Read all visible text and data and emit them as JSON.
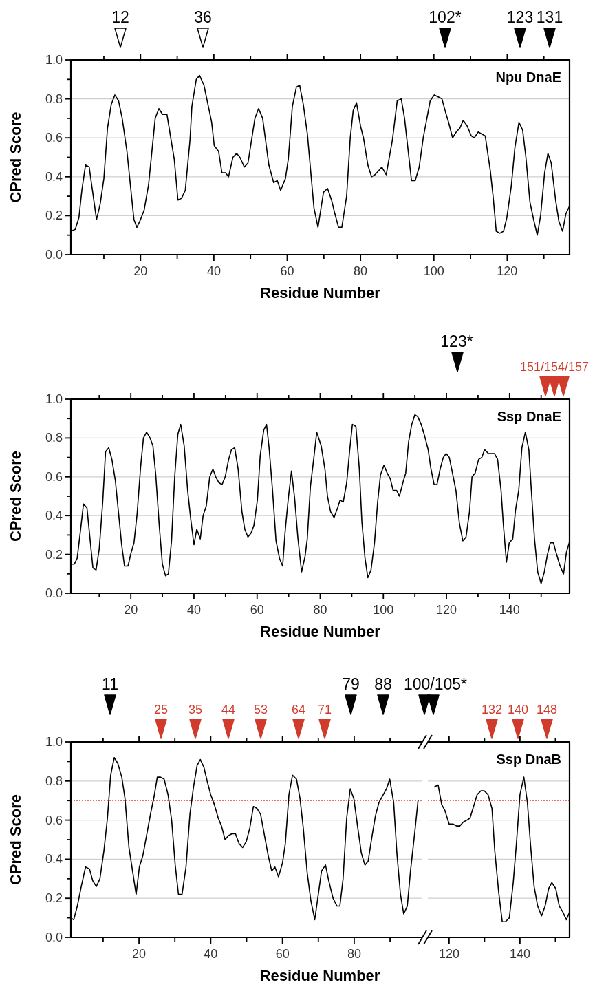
{
  "chart_data": [
    {
      "type": "line",
      "title": "Npu DnaE",
      "xlabel": "Residue Number",
      "ylabel": "CPred Score",
      "color": "#000000",
      "grid": "y",
      "xlim": [
        1,
        137
      ],
      "ylim": [
        0,
        1
      ],
      "xticks": [
        {
          "value": 10,
          "label": null
        },
        20,
        {
          "value": 30,
          "label": null
        },
        40,
        {
          "value": 50,
          "label": null
        },
        60,
        {
          "value": 70,
          "label": null
        },
        80,
        {
          "value": 90,
          "label": null
        },
        100,
        {
          "value": 110,
          "label": null
        },
        120,
        {
          "value": 130,
          "label": null
        }
      ],
      "yticks": [
        {
          "value": 0,
          "label": "0.0"
        },
        {
          "value": 0.1,
          "label": null
        },
        {
          "value": 0.2,
          "label": "0.2"
        },
        {
          "value": 0.3,
          "label": null
        },
        {
          "value": 0.4,
          "label": "0.4"
        },
        {
          "value": 0.5,
          "label": null
        },
        {
          "value": 0.6,
          "label": "0.6"
        },
        {
          "value": 0.7,
          "label": null
        },
        {
          "value": 0.8,
          "label": "0.8"
        },
        {
          "value": 0.9,
          "label": null
        },
        {
          "value": 1,
          "label": "1.0"
        }
      ],
      "x": [
        1,
        2.2,
        3.2,
        4,
        5,
        6,
        8,
        9,
        10,
        11,
        12,
        13,
        14,
        15,
        16.3,
        18.2,
        19,
        20,
        21,
        22.2,
        24,
        25,
        26,
        27.2,
        29.2,
        30.2,
        31.2,
        32.2,
        33.5,
        34,
        35.2,
        36.1,
        37.3,
        39.4,
        40.1,
        41.3,
        42.2,
        43.2,
        44,
        45.2,
        46.2,
        47.1,
        48.3,
        49.3,
        51.2,
        52.2,
        53.3,
        55,
        56.3,
        57.3,
        58.2,
        59.5,
        60.3,
        61.4,
        62.5,
        63.4,
        64.4,
        65.5,
        67.3,
        68.4,
        69.9,
        71,
        72.1,
        73,
        74,
        74.9,
        76.2,
        77.2,
        78,
        78.9,
        80,
        80.8,
        82,
        83,
        83.9,
        84.9,
        85.8,
        87,
        88.7,
        90,
        91.1,
        92,
        93.9,
        94.9,
        96,
        97.1,
        99,
        100.1,
        101.2,
        102.2,
        103.2,
        104,
        105.1,
        106.1,
        107.1,
        108,
        109.1,
        110.2,
        111,
        112.1,
        113,
        114,
        115.4,
        116.2,
        117,
        118,
        119,
        119.9,
        121.1,
        122.1,
        123.2,
        124.2,
        125.1,
        126.2,
        127.2,
        128.2,
        129.1,
        130.2,
        131.1,
        132,
        133.2,
        134.1,
        135.1,
        136,
        137
      ],
      "values": [
        0.12,
        0.13,
        0.19,
        0.33,
        0.46,
        0.45,
        0.18,
        0.26,
        0.39,
        0.65,
        0.77,
        0.82,
        0.79,
        0.7,
        0.53,
        0.18,
        0.14,
        0.18,
        0.23,
        0.36,
        0.7,
        0.75,
        0.72,
        0.72,
        0.49,
        0.28,
        0.29,
        0.33,
        0.59,
        0.76,
        0.9,
        0.92,
        0.87,
        0.68,
        0.56,
        0.53,
        0.42,
        0.42,
        0.4,
        0.5,
        0.52,
        0.5,
        0.45,
        0.47,
        0.7,
        0.75,
        0.7,
        0.46,
        0.37,
        0.38,
        0.33,
        0.39,
        0.49,
        0.76,
        0.86,
        0.87,
        0.77,
        0.62,
        0.24,
        0.14,
        0.32,
        0.34,
        0.28,
        0.21,
        0.14,
        0.14,
        0.3,
        0.6,
        0.74,
        0.78,
        0.66,
        0.6,
        0.46,
        0.4,
        0.41,
        0.43,
        0.45,
        0.41,
        0.59,
        0.79,
        0.8,
        0.7,
        0.38,
        0.38,
        0.45,
        0.6,
        0.79,
        0.82,
        0.81,
        0.8,
        0.73,
        0.68,
        0.6,
        0.63,
        0.65,
        0.69,
        0.66,
        0.61,
        0.6,
        0.63,
        0.62,
        0.61,
        0.43,
        0.29,
        0.12,
        0.11,
        0.12,
        0.19,
        0.35,
        0.55,
        0.68,
        0.64,
        0.5,
        0.27,
        0.18,
        0.1,
        0.2,
        0.42,
        0.52,
        0.47,
        0.28,
        0.17,
        0.12,
        0.21,
        0.25
      ],
      "annotations": [
        "12",
        "36",
        "102*",
        "123",
        "131"
      ]
    },
    {
      "type": "line",
      "title": "Ssp DnaE",
      "xlabel": "Residue Number",
      "ylabel": "CPred Score",
      "color": "#000000",
      "grid": "y",
      "xlim": [
        1,
        159
      ],
      "ylim": [
        0,
        1
      ],
      "xticks": [
        {
          "value": 10,
          "label": null
        },
        20,
        {
          "value": 30,
          "label": null
        },
        40,
        {
          "value": 50,
          "label": null
        },
        60,
        {
          "value": 70,
          "label": null
        },
        80,
        {
          "value": 90,
          "label": null
        },
        100,
        {
          "value": 110,
          "label": null
        },
        120,
        {
          "value": 130,
          "label": null
        },
        140,
        {
          "value": 150,
          "label": null
        }
      ],
      "yticks": [
        {
          "value": 0,
          "label": "0.0"
        },
        {
          "value": 0.1,
          "label": null
        },
        {
          "value": 0.2,
          "label": "0.2"
        },
        {
          "value": 0.3,
          "label": null
        },
        {
          "value": 0.4,
          "label": "0.4"
        },
        {
          "value": 0.5,
          "label": null
        },
        {
          "value": 0.6,
          "label": "0.6"
        },
        {
          "value": 0.7,
          "label": null
        },
        {
          "value": 0.8,
          "label": "0.8"
        },
        {
          "value": 0.9,
          "label": null
        },
        {
          "value": 1,
          "label": "1.0"
        }
      ],
      "x": [
        1,
        2.1,
        3,
        4.1,
        5,
        6.1,
        8,
        9,
        10,
        11.1,
        12,
        13,
        14,
        15.1,
        17.1,
        18,
        19.1,
        20.1,
        21,
        22,
        23.1,
        24,
        25,
        26.1,
        27,
        27.9,
        29,
        30,
        31,
        31.9,
        32.9,
        33.9,
        34.9,
        35.8,
        36.9,
        38,
        39,
        40,
        40.9,
        42,
        42.9,
        43.9,
        45,
        46,
        46.9,
        47.9,
        48.9,
        49.9,
        51,
        51.9,
        52.9,
        54,
        55.2,
        56.1,
        57.1,
        58.1,
        59,
        60.1,
        61,
        62.1,
        63,
        63.8,
        64.9,
        66,
        67.1,
        68.1,
        68.9,
        69.9,
        70.9,
        71.9,
        72.9,
        74.1,
        75.2,
        75.9,
        76.9,
        78,
        78.9,
        80.3,
        81.5,
        82.3,
        83.3,
        84.4,
        85.5,
        86.3,
        87.3,
        88.4,
        89.3,
        90.2,
        91.3,
        92.4,
        93.2,
        94.2,
        95.1,
        96.1,
        97.2,
        98.2,
        99.1,
        100.2,
        101.2,
        102.2,
        103.1,
        104.2,
        105.1,
        106.2,
        107.1,
        108,
        109,
        110,
        110.9,
        112,
        113.1,
        114.2,
        115.1,
        116.1,
        117,
        118,
        119,
        119.9,
        120.9,
        121.9,
        123,
        124.1,
        125.2,
        126.2,
        127.3,
        128.1,
        129.1,
        130.2,
        131.2,
        132.1,
        133.3,
        134.2,
        135.2,
        136.2,
        137.3,
        138,
        139,
        139.9,
        141,
        141.9,
        142.9,
        143.9,
        145,
        146.1,
        146.9,
        147.9,
        148.9,
        150,
        151,
        152,
        152.9,
        153.9,
        154.9,
        156,
        157.1,
        158,
        158.9
      ],
      "values": [
        0.15,
        0.15,
        0.18,
        0.33,
        0.46,
        0.44,
        0.13,
        0.12,
        0.23,
        0.47,
        0.73,
        0.75,
        0.69,
        0.58,
        0.25,
        0.14,
        0.14,
        0.21,
        0.26,
        0.41,
        0.65,
        0.8,
        0.83,
        0.8,
        0.76,
        0.61,
        0.35,
        0.15,
        0.09,
        0.1,
        0.27,
        0.6,
        0.82,
        0.87,
        0.76,
        0.53,
        0.38,
        0.25,
        0.33,
        0.28,
        0.4,
        0.45,
        0.6,
        0.64,
        0.6,
        0.57,
        0.56,
        0.6,
        0.69,
        0.74,
        0.75,
        0.64,
        0.42,
        0.33,
        0.29,
        0.31,
        0.35,
        0.48,
        0.71,
        0.84,
        0.87,
        0.75,
        0.53,
        0.27,
        0.18,
        0.14,
        0.32,
        0.49,
        0.63,
        0.49,
        0.29,
        0.11,
        0.19,
        0.28,
        0.55,
        0.7,
        0.83,
        0.76,
        0.64,
        0.5,
        0.42,
        0.39,
        0.44,
        0.48,
        0.47,
        0.57,
        0.73,
        0.87,
        0.86,
        0.64,
        0.37,
        0.18,
        0.08,
        0.12,
        0.26,
        0.47,
        0.61,
        0.66,
        0.62,
        0.59,
        0.53,
        0.53,
        0.5,
        0.57,
        0.62,
        0.78,
        0.87,
        0.92,
        0.91,
        0.87,
        0.81,
        0.74,
        0.64,
        0.56,
        0.56,
        0.64,
        0.7,
        0.72,
        0.7,
        0.62,
        0.53,
        0.36,
        0.27,
        0.29,
        0.42,
        0.6,
        0.62,
        0.69,
        0.7,
        0.74,
        0.72,
        0.72,
        0.72,
        0.69,
        0.53,
        0.36,
        0.16,
        0.26,
        0.28,
        0.43,
        0.53,
        0.75,
        0.83,
        0.74,
        0.53,
        0.28,
        0.11,
        0.05,
        0.11,
        0.2,
        0.26,
        0.26,
        0.2,
        0.14,
        0.1,
        0.21,
        0.26
      ],
      "annotations": [
        "123*",
        "151/154/157"
      ]
    },
    {
      "type": "line",
      "xlabel": "Residue Number",
      "ylabel": "CPred Score",
      "color": "#000000",
      "grid": "y",
      "xlim": [
        1,
        99
      ],
      "ylim": [
        0,
        1
      ],
      "xticks": [
        {
          "value": 10,
          "label": null
        },
        20,
        {
          "value": 30,
          "label": null
        },
        40,
        {
          "value": 50,
          "label": null
        },
        60,
        {
          "value": 70,
          "label": null
        },
        80,
        {
          "value": 90,
          "label": null
        }
      ],
      "yticks": [
        {
          "value": 0,
          "label": "0.0"
        },
        {
          "value": 0.1,
          "label": null
        },
        {
          "value": 0.2,
          "label": "0.2"
        },
        {
          "value": 0.3,
          "label": null
        },
        {
          "value": 0.4,
          "label": "0.4"
        },
        {
          "value": 0.5,
          "label": null
        },
        {
          "value": 0.6,
          "label": "0.6"
        },
        {
          "value": 0.7,
          "label": null
        },
        {
          "value": 0.8,
          "label": "0.8"
        },
        {
          "value": 0.9,
          "label": null
        },
        {
          "value": 1,
          "label": "1.0"
        }
      ],
      "x": [
        1,
        1.8,
        2.8,
        3.9,
        5.1,
        6.2,
        7.1,
        8.1,
        9.1,
        10.2,
        11.2,
        12.1,
        13.1,
        14.1,
        15.2,
        16.1,
        17.2,
        18.2,
        19.2,
        20.1,
        21.1,
        22.2,
        23.3,
        24.2,
        25.1,
        26,
        27,
        28.1,
        29.1,
        30.1,
        31,
        32,
        33.1,
        34.2,
        35.2,
        36.2,
        37.1,
        38.1,
        39,
        40,
        41,
        42.1,
        43,
        44,
        44.9,
        45.9,
        46.9,
        47.9,
        48.9,
        49.9,
        50.9,
        51.9,
        52.9,
        53.9,
        55.1,
        56,
        57,
        57.9,
        58.9,
        60,
        60.8,
        61.8,
        62.8,
        63.9,
        64.9,
        65.8,
        66.9,
        67.9,
        69,
        70.9,
        72,
        72.9,
        74.1,
        75.2,
        76,
        76.9,
        77.9,
        78.9,
        79.9,
        81,
        82,
        83,
        83.9,
        84.9,
        85.9,
        86.9,
        88.1,
        89,
        89.9,
        91,
        91.9,
        92.9,
        93.8,
        94.8,
        95.7,
        96.9,
        97.8
      ],
      "values": [
        0.1,
        0.09,
        0.16,
        0.26,
        0.36,
        0.35,
        0.29,
        0.26,
        0.3,
        0.44,
        0.61,
        0.83,
        0.92,
        0.89,
        0.82,
        0.71,
        0.46,
        0.34,
        0.22,
        0.36,
        0.42,
        0.53,
        0.64,
        0.72,
        0.82,
        0.82,
        0.81,
        0.73,
        0.6,
        0.37,
        0.22,
        0.22,
        0.36,
        0.63,
        0.77,
        0.88,
        0.91,
        0.87,
        0.8,
        0.73,
        0.68,
        0.61,
        0.57,
        0.5,
        0.52,
        0.53,
        0.53,
        0.48,
        0.46,
        0.49,
        0.56,
        0.67,
        0.66,
        0.63,
        0.51,
        0.42,
        0.34,
        0.36,
        0.31,
        0.38,
        0.48,
        0.73,
        0.83,
        0.81,
        0.71,
        0.56,
        0.33,
        0.19,
        0.09,
        0.34,
        0.37,
        0.29,
        0.2,
        0.16,
        0.16,
        0.3,
        0.61,
        0.76,
        0.71,
        0.56,
        0.43,
        0.37,
        0.39,
        0.51,
        0.62,
        0.69,
        0.73,
        0.76,
        0.81,
        0.69,
        0.43,
        0.22,
        0.12,
        0.16,
        0.34,
        0.54,
        0.7
      ],
      "ref_lines": [
        {
          "axis": "y",
          "value": 0.7,
          "color": "#e03c31",
          "line_style": "dotted"
        }
      ],
      "annotations": [
        "11",
        "25",
        "35",
        "44",
        "53",
        "64",
        "71",
        "79",
        "88"
      ]
    },
    {
      "type": "line",
      "title": "Ssp DnaB",
      "color": "#000000",
      "grid": "y",
      "tick_labels": "x",
      "xlim": [
        114,
        154
      ],
      "ylim": [
        0,
        1
      ],
      "xticks": [
        120,
        {
          "value": 130,
          "label": null
        },
        140,
        {
          "value": 150,
          "label": null
        }
      ],
      "yticks": [
        {
          "value": 0.2,
          "label": null
        },
        {
          "value": 0.4,
          "label": null
        },
        {
          "value": 0.6,
          "label": null
        },
        {
          "value": 0.8,
          "label": null
        }
      ],
      "x": [
        115.9,
        116.9,
        117.9,
        118.8,
        120,
        121.1,
        122.1,
        123,
        124,
        125,
        125.9,
        126.9,
        127.9,
        129,
        129.9,
        131,
        132.1,
        132.9,
        134,
        135,
        135.9,
        137,
        138.1,
        139,
        140,
        141.1,
        142.1,
        143,
        144,
        145,
        146.1,
        147.1,
        148.1,
        149,
        150.1,
        151.1,
        152.1,
        153.1,
        154
      ],
      "values": [
        0.77,
        0.78,
        0.68,
        0.65,
        0.58,
        0.58,
        0.57,
        0.57,
        0.59,
        0.6,
        0.61,
        0.67,
        0.73,
        0.75,
        0.75,
        0.73,
        0.66,
        0.44,
        0.23,
        0.08,
        0.08,
        0.1,
        0.28,
        0.48,
        0.73,
        0.82,
        0.69,
        0.47,
        0.26,
        0.16,
        0.11,
        0.16,
        0.25,
        0.28,
        0.25,
        0.16,
        0.13,
        0.09,
        0.13
      ],
      "ref_lines": [
        {
          "axis": "y",
          "value": 0.7,
          "color": "#e03c31",
          "line_style": "dotted"
        }
      ],
      "annotations": [
        "100/105*",
        "132",
        "140",
        "148"
      ]
    }
  ]
}
